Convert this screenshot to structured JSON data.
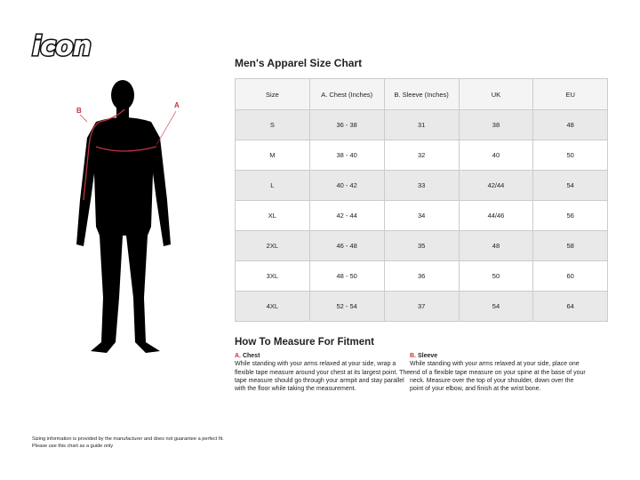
{
  "logo": {
    "text": "icon"
  },
  "figure": {
    "label_a": "A",
    "label_b": "B",
    "accent": "#c0343f"
  },
  "chart": {
    "title": "Men's Apparel Size Chart",
    "headers": [
      "Size",
      "A. Chest (Inches)",
      "B. Sleeve (Inches)",
      "UK",
      "EU"
    ],
    "rows": [
      [
        "S",
        "36 - 38",
        "31",
        "38",
        "48"
      ],
      [
        "M",
        "38 - 40",
        "32",
        "40",
        "50"
      ],
      [
        "L",
        "40 - 42",
        "33",
        "42/44",
        "54"
      ],
      [
        "XL",
        "42 - 44",
        "34",
        "44/46",
        "56"
      ],
      [
        "2XL",
        "46 - 48",
        "35",
        "48",
        "58"
      ],
      [
        "3XL",
        "48 - 50",
        "36",
        "50",
        "60"
      ],
      [
        "4XL",
        "52 - 54",
        "37",
        "54",
        "64"
      ]
    ]
  },
  "measure": {
    "title": "How To Measure For Fitment",
    "chest": {
      "letter": "A.",
      "name": "Chest",
      "text": "While standing with your arms relaxed at your side, wrap a flexible tape measure around your chest at its largest point. The tape measure should go through your armpit and stay parallel with the floor while taking the measurement."
    },
    "sleeve": {
      "letter": "B.",
      "name": "Sleeve",
      "text": "While standing with your arms relaxed at your side, place one end of a flexible tape measure on your spine at the base of your neck. Measure over the top of your shoulder, down over the point of your elbow, and finish at the wrist bone."
    }
  },
  "footnote": {
    "line1": "Sizing information is provided by the manufacturer and does not guarantee a perfect fit.",
    "line2": "Please use this chart as a guide only"
  }
}
